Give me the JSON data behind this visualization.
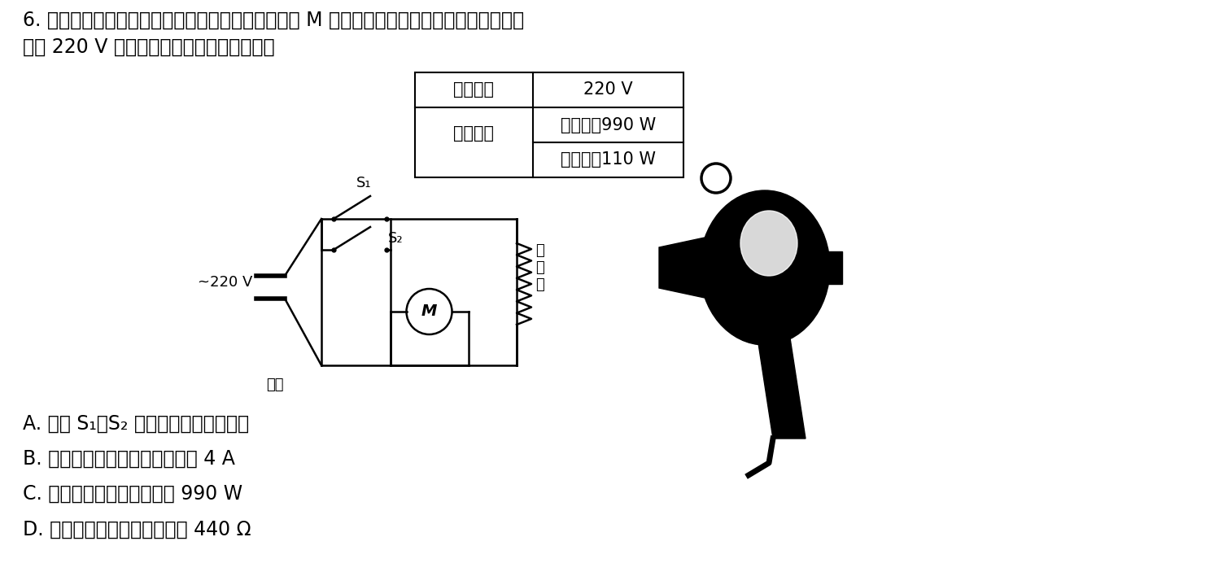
{
  "title_line1": "6. 某电吹风简化电路如图所示，其主要部件为电动机 M 和电热丝，部分技术参数如下表，电吹",
  "title_line2": "风在 220 V 电压下工作。下列说法正确的是",
  "table_row1_col1": "额定电压",
  "table_row1_col2": "220 V",
  "table_row2_col1": "额定功率",
  "table_row2a": "热风时：990 W",
  "table_row2b": "冷风时：110 W",
  "label_voltage": "~220 V",
  "label_plug": "插头",
  "label_S1": "S₁",
  "label_S2": "S₂",
  "label_M": "M",
  "label_heater": "电\n热\n丝",
  "options": [
    "A. 开关 S₁、S₂ 都闭合时电吹风吹冷风",
    "B. 吹热风时通过电热丝的电流为 4 A",
    "C. 吹热风时电热丝的功率为 990 W",
    "D. 该电吹风中电动机的内阻为 440 Ω"
  ],
  "bg_color": "#ffffff"
}
